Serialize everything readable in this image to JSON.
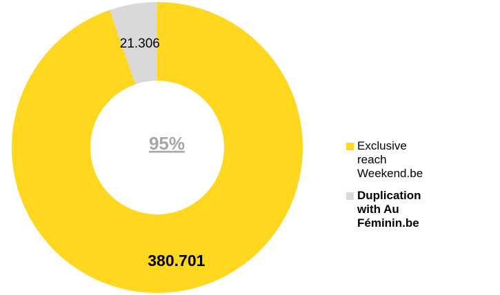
{
  "chart_data": {
    "type": "donut",
    "center_label": "95%",
    "series": [
      {
        "name": "Exclusive reach Weekend.be",
        "color": "#ffd71e",
        "values": [
          380701
        ],
        "value_labels": [
          "380.701"
        ]
      },
      {
        "name": "Duplication with Au Féminin.be",
        "color": "#d9d9d9",
        "values": [
          21306
        ],
        "value_labels": [
          "21.306"
        ]
      }
    ]
  }
}
